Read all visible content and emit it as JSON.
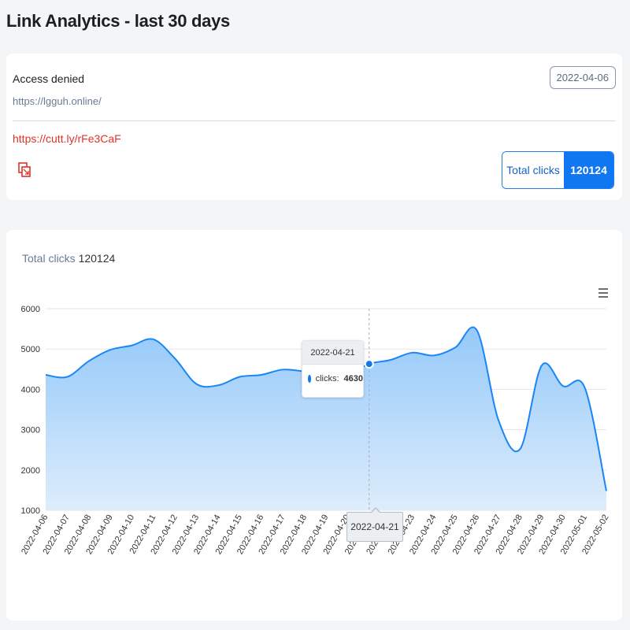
{
  "page": {
    "title": "Link Analytics - last 30 days"
  },
  "link": {
    "title": "Access denied",
    "long_url": "https://lgguh.online/",
    "date": "2022-04-06",
    "short_url": "https://cutt.ly/rFe3CaF",
    "copy_icon": "copy-icon",
    "total_clicks_label": "Total clicks",
    "total_clicks_value": "120124"
  },
  "chart": {
    "heading_label": "Total clicks",
    "heading_value": "120124",
    "menu_icon": "hamburger-menu-icon",
    "tooltip": {
      "date": "2022-04-21",
      "series": "clicks:",
      "value": "4630"
    },
    "x_tooltip": "2022-04-21"
  },
  "colors": {
    "accent": "#1176f2",
    "short_url": "#e0322b",
    "line": "#1a86f5"
  },
  "chart_data": {
    "type": "area",
    "title": "",
    "xlabel": "",
    "ylabel": "",
    "ylim": [
      1000,
      6000
    ],
    "yticks": [
      1000,
      2000,
      3000,
      4000,
      5000,
      6000
    ],
    "grid": true,
    "x": [
      "2022-04-06",
      "2022-04-07",
      "2022-04-08",
      "2022-04-09",
      "2022-04-10",
      "2022-04-11",
      "2022-04-12",
      "2022-04-13",
      "2022-04-14",
      "2022-04-15",
      "2022-04-16",
      "2022-04-17",
      "2022-04-18",
      "2022-04-19",
      "2022-04-20",
      "2022-04-21",
      "2022-04-22",
      "2022-04-23",
      "2022-04-24",
      "2022-04-25",
      "2022-04-26",
      "2022-04-27",
      "2022-04-28",
      "2022-04-29",
      "2022-04-30",
      "2022-05-01",
      "2022-05-02"
    ],
    "series": [
      {
        "name": "clicks",
        "values": [
          4360,
          4310,
          4700,
          4980,
          5090,
          5240,
          4760,
          4130,
          4100,
          4310,
          4360,
          4490,
          4440,
          4320,
          4380,
          4630,
          4730,
          4910,
          4840,
          5040,
          5460,
          3230,
          2520,
          4590,
          4080,
          4040,
          1480
        ]
      }
    ]
  }
}
